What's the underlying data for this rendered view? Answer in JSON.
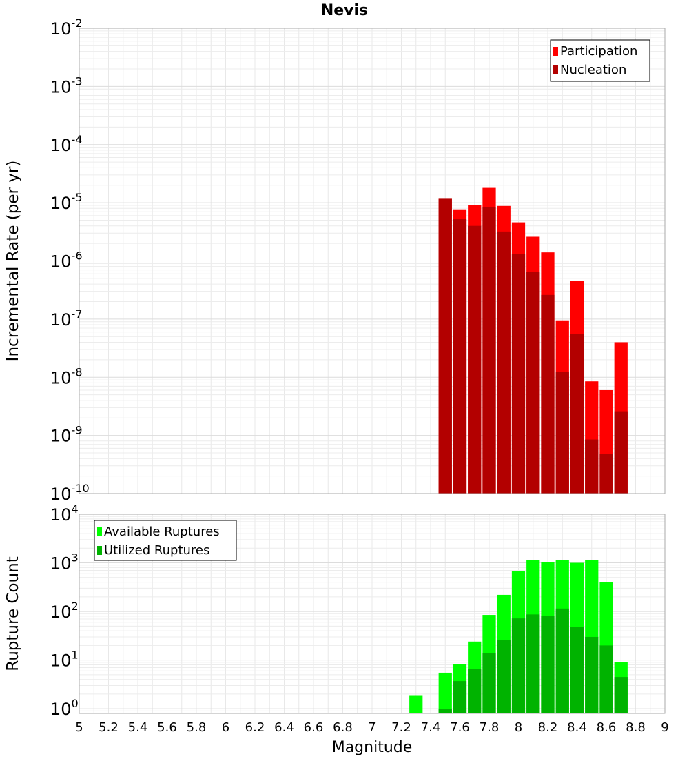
{
  "chart_data": [
    {
      "type": "bar",
      "title": "Nevis",
      "xlabel": "",
      "ylabel": "Incremental Rate (per yr)",
      "yscale": "log",
      "ylim": [
        1e-10,
        0.01
      ],
      "xlim": [
        5,
        9
      ],
      "grid": true,
      "legend_position": "top-right",
      "y_tick_exponents": [
        "-10",
        "-9",
        "-8",
        "-7",
        "-6",
        "-5",
        "-4",
        "-3",
        "-2"
      ],
      "y_tick_base": "10",
      "x": [
        7.5,
        7.6,
        7.7,
        7.8,
        7.9,
        8.0,
        8.1,
        8.2,
        8.3,
        8.4,
        8.5,
        8.6,
        8.7
      ],
      "series": [
        {
          "name": "Participation",
          "color": "#ff0000",
          "values": [
            1.2e-05,
            7.7e-06,
            9e-06,
            1.8e-05,
            8.8e-06,
            4.6e-06,
            2.6e-06,
            1.4e-06,
            9.5e-08,
            4.5e-07,
            8.5e-09,
            6e-09,
            4e-08
          ]
        },
        {
          "name": "Nucleation",
          "color": "#b30000",
          "values": [
            1.2e-05,
            5.2e-06,
            4e-06,
            8.5e-06,
            3.2e-06,
            1.3e-06,
            6.5e-07,
            2.6e-07,
            1.25e-08,
            5.6e-08,
            8.5e-10,
            4.8e-10,
            2.6e-09
          ]
        }
      ]
    },
    {
      "type": "bar",
      "title": "",
      "xlabel": "Magnitude",
      "ylabel": "Rupture Count",
      "yscale": "log",
      "ylim": [
        0.8,
        10000
      ],
      "xlim": [
        5,
        9
      ],
      "grid": true,
      "legend_position": "top-left",
      "y_tick_exponents": [
        "0",
        "1",
        "2",
        "3",
        "4"
      ],
      "y_tick_base": "10",
      "x_ticks": [
        "5",
        "5.2",
        "5.4",
        "5.6",
        "5.8",
        "6",
        "6.2",
        "6.4",
        "6.6",
        "6.8",
        "7",
        "7.2",
        "7.4",
        "7.6",
        "7.8",
        "8",
        "8.2",
        "8.4",
        "8.6",
        "8.8",
        "9"
      ],
      "x": [
        7.3,
        7.5,
        7.6,
        7.7,
        7.8,
        7.9,
        8.0,
        8.1,
        8.2,
        8.3,
        8.4,
        8.5,
        8.6,
        8.7
      ],
      "series": [
        {
          "name": "Available Ruptures",
          "color": "#00ff00",
          "values": [
            1.9,
            5.5,
            8.3,
            24,
            85,
            220,
            680,
            1150,
            1050,
            1150,
            1000,
            1150,
            400,
            9.0
          ]
        },
        {
          "name": "Utilized Ruptures",
          "color": "#00b300",
          "values": [
            null,
            1.0,
            3.7,
            6.5,
            14,
            26,
            72,
            87,
            82,
            115,
            48,
            30,
            20,
            4.5
          ]
        }
      ]
    }
  ]
}
